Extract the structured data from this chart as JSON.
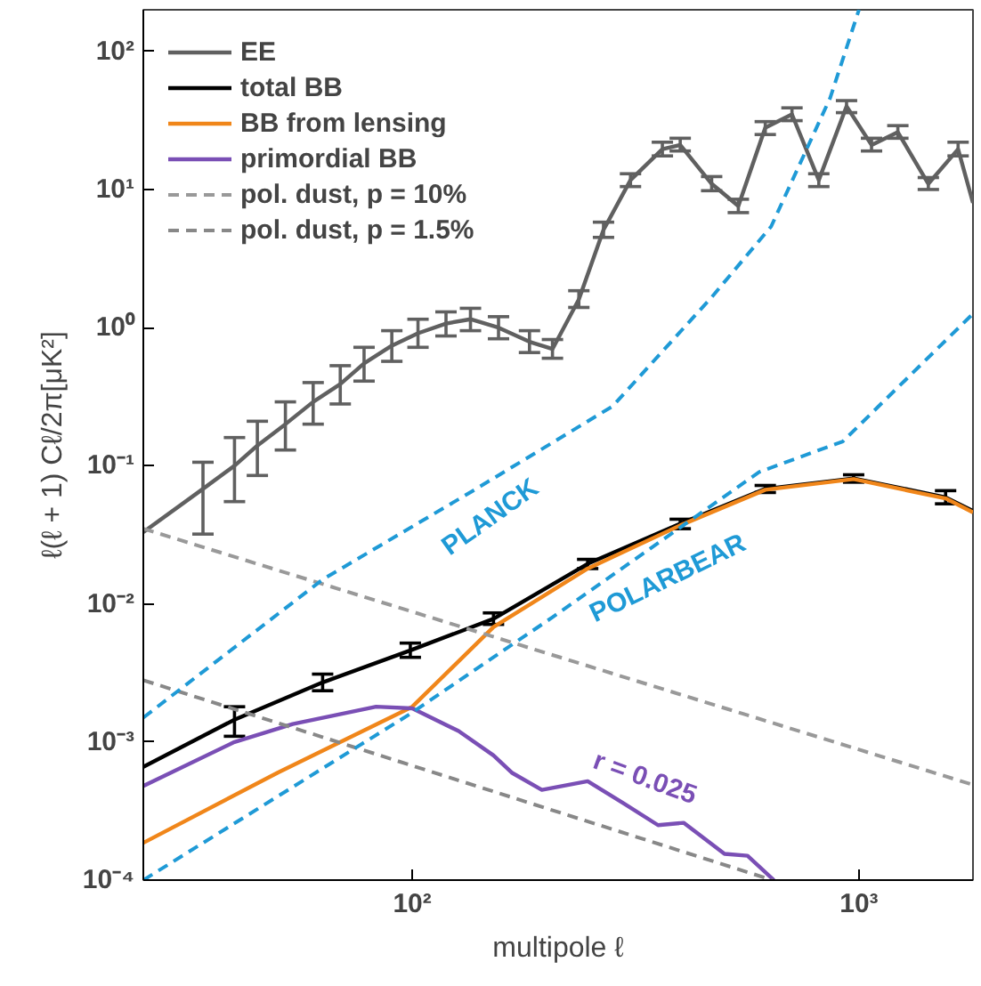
{
  "chart_data": {
    "type": "line",
    "xlabel": "multipole ℓ",
    "ylabel": "ℓ(ℓ + 1) Cℓ/2π[μK²]",
    "log": "xy",
    "xlim": [
      25,
      1800
    ],
    "ylim": [
      0.0001,
      200
    ],
    "xticks": [
      {
        "value": 100,
        "label": "10²"
      },
      {
        "value": 1000,
        "label": "10³"
      }
    ],
    "yticks": [
      {
        "value": 0.0001,
        "label": "10⁻⁴"
      },
      {
        "value": 0.001,
        "label": "10⁻³"
      },
      {
        "value": 0.01,
        "label": "10⁻²"
      },
      {
        "value": 0.1,
        "label": "10⁻¹"
      },
      {
        "value": 1,
        "label": "10⁰"
      },
      {
        "value": 10,
        "label": "10¹"
      },
      {
        "value": 100,
        "label": "10²"
      }
    ],
    "grid": false,
    "legend": "top left",
    "series": [
      {
        "name": "EE",
        "color": "#606060",
        "line_style": "solid",
        "x": [
          25,
          34,
          40,
          45,
          52,
          60,
          69,
          78,
          90,
          103,
          119,
          135,
          156,
          183,
          206,
          236,
          268,
          308,
          363,
          398,
          468,
          537,
          617,
          708,
          813,
          938,
          1067,
          1222,
          1430,
          1667,
          1800
        ],
        "values": [
          0.033,
          0.068,
          0.1,
          0.14,
          0.2,
          0.29,
          0.39,
          0.55,
          0.74,
          0.91,
          1.07,
          1.15,
          1.0,
          0.79,
          0.7,
          1.6,
          5.1,
          11.7,
          19.6,
          21,
          11,
          7.6,
          28,
          35,
          11.7,
          40,
          21,
          26,
          11,
          19.6,
          8
        ],
        "errors": [
          null,
          [
            0.032,
            0.106
          ],
          [
            0.055,
            0.16
          ],
          [
            0.085,
            0.21
          ],
          [
            0.13,
            0.29
          ],
          [
            0.2,
            0.4
          ],
          [
            0.28,
            0.53
          ],
          [
            0.41,
            0.72
          ],
          [
            0.57,
            0.95
          ],
          [
            0.72,
            1.15
          ],
          [
            0.87,
            1.3
          ],
          [
            0.95,
            1.38
          ],
          [
            0.83,
            1.2
          ],
          [
            0.66,
            0.95
          ],
          [
            0.6,
            0.82
          ],
          [
            1.4,
            1.85
          ],
          [
            4.5,
            5.8
          ],
          [
            10.5,
            13
          ],
          [
            17.5,
            22
          ],
          [
            19,
            23.5
          ],
          [
            9.8,
            12.4
          ],
          [
            6.8,
            8.5
          ],
          [
            25,
            31
          ],
          [
            31.5,
            39
          ],
          [
            10.5,
            13
          ],
          [
            36,
            44
          ],
          [
            19,
            23.5
          ],
          [
            23.5,
            29
          ],
          [
            10,
            12.2
          ],
          [
            17.5,
            22
          ],
          null
        ]
      },
      {
        "name": "total BB",
        "color": "#000000",
        "line_style": "solid",
        "x": [
          25,
          40,
          63,
          99,
          152,
          247,
          398,
          617,
          973,
          1563,
          1800
        ],
        "values": [
          0.00066,
          0.00145,
          0.0027,
          0.0046,
          0.0078,
          0.0195,
          0.038,
          0.068,
          0.081,
          0.059,
          0.047
        ],
        "errors": [
          null,
          [
            0.0011,
            0.0018
          ],
          [
            0.00235,
            0.0031
          ],
          [
            0.0041,
            0.0052
          ],
          [
            0.0071,
            0.0086
          ],
          [
            0.018,
            0.021
          ],
          [
            0.035,
            0.041
          ],
          [
            0.064,
            0.072
          ],
          [
            0.076,
            0.086
          ],
          [
            0.053,
            0.066
          ],
          null
        ]
      },
      {
        "name": "BB from lensing",
        "color": "#f0861a",
        "line_style": "solid",
        "x": [
          25,
          50,
          100,
          152,
          247,
          398,
          617,
          973,
          1563,
          1800
        ],
        "values": [
          0.000186,
          0.0006,
          0.0018,
          0.0068,
          0.018,
          0.037,
          0.067,
          0.08,
          0.058,
          0.046
        ]
      },
      {
        "name": "primordial BB",
        "color": "#7a4fb5",
        "line_style": "solid",
        "x": [
          25,
          40,
          54,
          83,
          100,
          127,
          152,
          167,
          195,
          247,
          297,
          355,
          405,
          500,
          563,
          645
        ],
        "values": [
          0.00048,
          0.001,
          0.00135,
          0.0018,
          0.00175,
          0.0012,
          0.0008,
          0.0006,
          0.00045,
          0.00052,
          0.00036,
          0.00025,
          0.00026,
          0.000155,
          0.00015,
          0.0001
        ]
      },
      {
        "name": "pol. dust, p = 10%",
        "color": "#999999",
        "line_style": "dashed",
        "x": [
          25,
          1800
        ],
        "values": [
          0.035,
          0.00049
        ]
      },
      {
        "name": "pol. dust, p = 1.5%",
        "color": "#888888",
        "line_style": "dashed",
        "x": [
          25,
          640
        ],
        "values": [
          0.0028,
          0.0001
        ]
      },
      {
        "color": "#1f9ad6",
        "line_style": "dashed",
        "x": [
          25,
          63,
          139,
          281,
          468,
          636,
          862,
          1000
        ],
        "values": [
          0.0015,
          0.015,
          0.068,
          0.27,
          1.66,
          5.4,
          46,
          200
        ]
      },
      {
        "color": "#1f9ad6",
        "line_style": "dashed",
        "x": [
          25,
          99,
          206,
          598,
          920,
          1800
        ],
        "values": [
          0.0001,
          0.0016,
          0.008,
          0.09,
          0.15,
          1.26
        ]
      }
    ],
    "annotations": [
      {
        "text": "PLANCK",
        "x": 139,
        "y": 0.068
      },
      {
        "text": "POLARBEAR",
        "x": 347,
        "y": 0.026
      },
      {
        "text": "r = 0.025",
        "x": 297,
        "y": 0.00036
      }
    ]
  }
}
